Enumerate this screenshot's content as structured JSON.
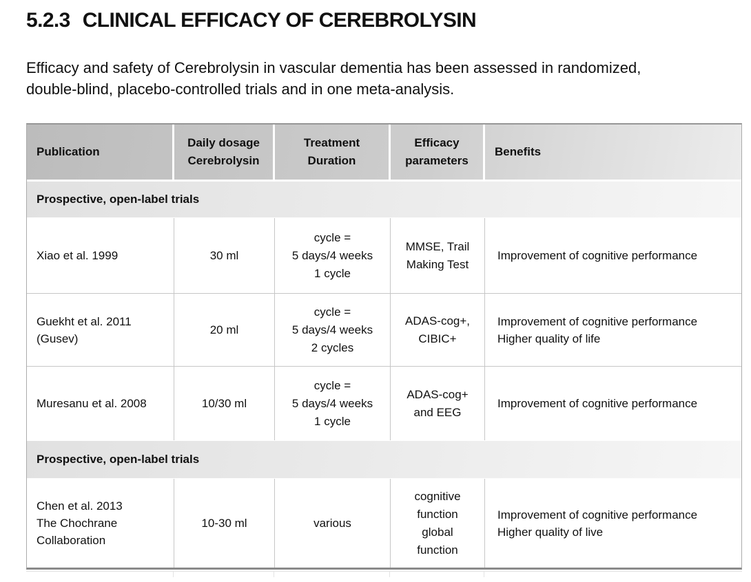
{
  "page": {
    "heading": {
      "number": "5.2.3",
      "title": "CLINICAL EFFICACY OF CEREBROLYSIN"
    },
    "intro": "Efficacy and safety of Cerebrolysin in vascular dementia has been assessed in randomized,\ndouble-blind, placebo-controlled trials and in one meta-analysis."
  },
  "table": {
    "columns": [
      "Publication",
      "Daily dosage\nCerebrolysin",
      "Treatment\nDuration",
      "Efficacy\nparameters",
      "Benefits"
    ],
    "sections": [
      {
        "label": "Prospective, open-label trials",
        "rows": [
          {
            "cells": [
              "Xiao et al. 1999",
              "30 ml",
              "cycle =\n5 days/4 weeks\n1 cycle",
              "MMSE, Trail\nMaking Test",
              "Improvement of cognitive performance"
            ]
          },
          {
            "cells": [
              "Guekht et al. 2011\n(Gusev)",
              "20 ml",
              "cycle =\n5 days/4 weeks\n2 cycles",
              "ADAS-cog+,\nCIBIC+",
              "Improvement of cognitive performance\nHigher quality of life"
            ]
          },
          {
            "cells": [
              "Muresanu et al. 2008",
              "10/30 ml",
              "cycle =\n5 days/4 weeks\n1 cycle",
              "ADAS-cog+\nand EEG",
              "Improvement of cognitive performance"
            ]
          }
        ]
      },
      {
        "label": "Prospective, open-label trials",
        "rows": [
          {
            "cells": [
              "Chen et al. 2013\nThe Chochrane\nCollaboration",
              "10-30 ml",
              "various",
              "cognitive\nfunction\nglobal\nfunction",
              "Improvement of cognitive performance\nHigher quality of live"
            ]
          }
        ]
      }
    ]
  },
  "colors": {
    "header_bg_start": "#bcbcbc",
    "header_bg_end": "#ececec",
    "section_bg_start": "#e1e1e1",
    "section_bg_end": "#f6f6f6",
    "grid_line": "#c6c6c6",
    "text": "#111111"
  }
}
